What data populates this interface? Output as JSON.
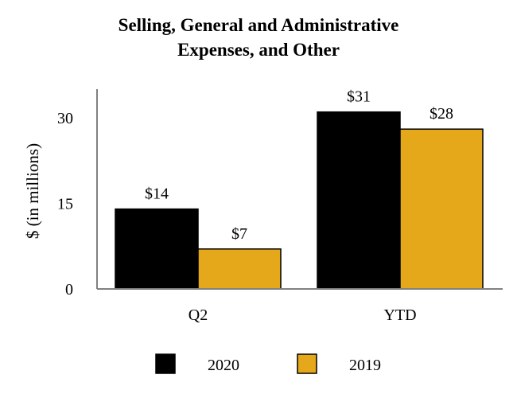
{
  "chart_data": {
    "type": "bar",
    "title_lines": [
      "Selling, General and Administrative",
      "Expenses, and Other"
    ],
    "xlabel": "",
    "ylabel": "$ (in millions)",
    "categories": [
      "Q2",
      "YTD"
    ],
    "series": [
      {
        "name": "2020",
        "color": "#000000",
        "values": [
          14,
          31
        ],
        "labels": [
          "$14",
          "$31"
        ]
      },
      {
        "name": "2019",
        "color": "#E5A81B",
        "values": [
          7,
          28
        ],
        "labels": [
          "$7",
          "$28"
        ]
      }
    ],
    "ylim": [
      0,
      35
    ],
    "yticks": [
      0,
      15,
      30
    ],
    "ytick_labels": [
      "0",
      "15",
      "30"
    ],
    "grid": false,
    "legend_position": "bottom"
  }
}
